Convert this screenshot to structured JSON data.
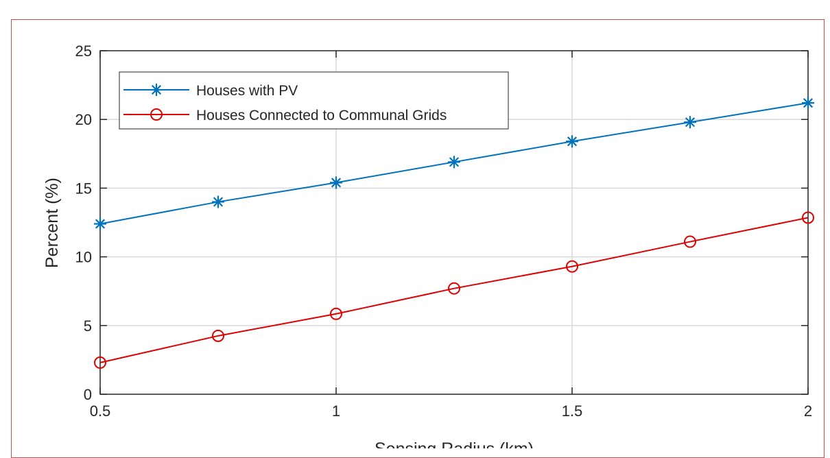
{
  "chart_data": {
    "type": "line",
    "title": "",
    "xlabel": "Sensing Radius (km)",
    "ylabel": "Percent (%)",
    "xlim": [
      0.5,
      2
    ],
    "ylim": [
      0,
      25
    ],
    "xticks": [
      0.5,
      1,
      1.5,
      2
    ],
    "yticks": [
      0,
      5,
      10,
      15,
      20,
      25
    ],
    "grid": true,
    "legend_position": "top-left",
    "x": [
      0.5,
      0.75,
      1,
      1.25,
      1.5,
      1.75,
      2
    ],
    "series": [
      {
        "name": "Houses with PV",
        "values": [
          12.4,
          14.0,
          15.4,
          16.9,
          18.4,
          19.8,
          21.2
        ],
        "color": "#0072bd",
        "marker": "asterisk"
      },
      {
        "name": "Houses Connected to Communal Grids",
        "values": [
          2.3,
          4.25,
          5.85,
          7.7,
          9.3,
          11.1,
          12.85
        ],
        "color": "#e00000",
        "marker": "circle"
      }
    ]
  }
}
